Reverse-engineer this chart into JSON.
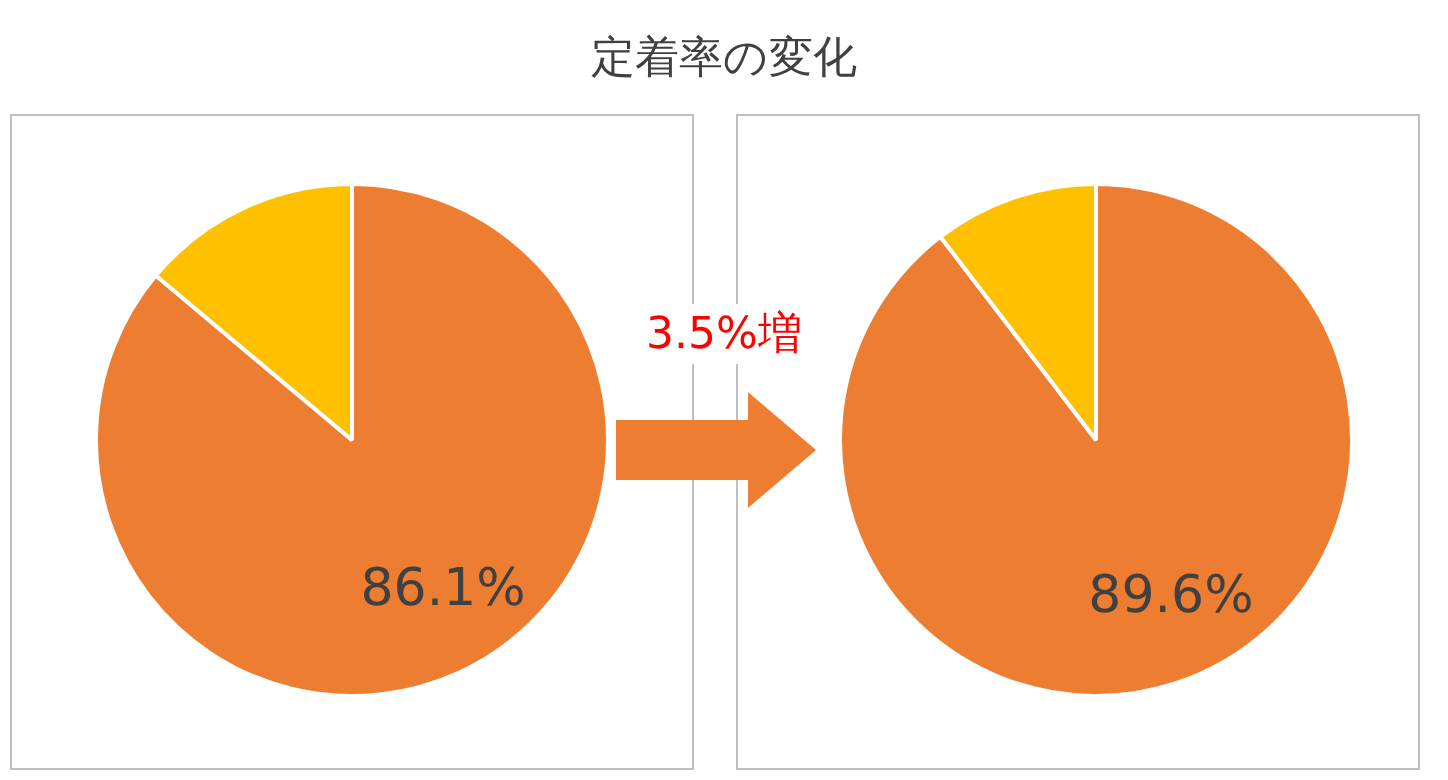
{
  "chart_data": [
    {
      "type": "pie",
      "title": "定着率の変化",
      "annotations": [
        "3.5%増"
      ],
      "categories": [
        null,
        null
      ],
      "values": [
        86.1,
        13.9
      ],
      "colors": [
        "#ed7d31",
        "#ffc000"
      ],
      "value_labels": [
        "86.1%",
        null
      ],
      "legend": false
    },
    {
      "type": "pie",
      "categories": [
        null,
        null
      ],
      "values": [
        89.6,
        10.4
      ],
      "colors": [
        "#ed7d31",
        "#ffc000"
      ],
      "value_labels": [
        "89.6%",
        null
      ],
      "legend": false
    }
  ]
}
